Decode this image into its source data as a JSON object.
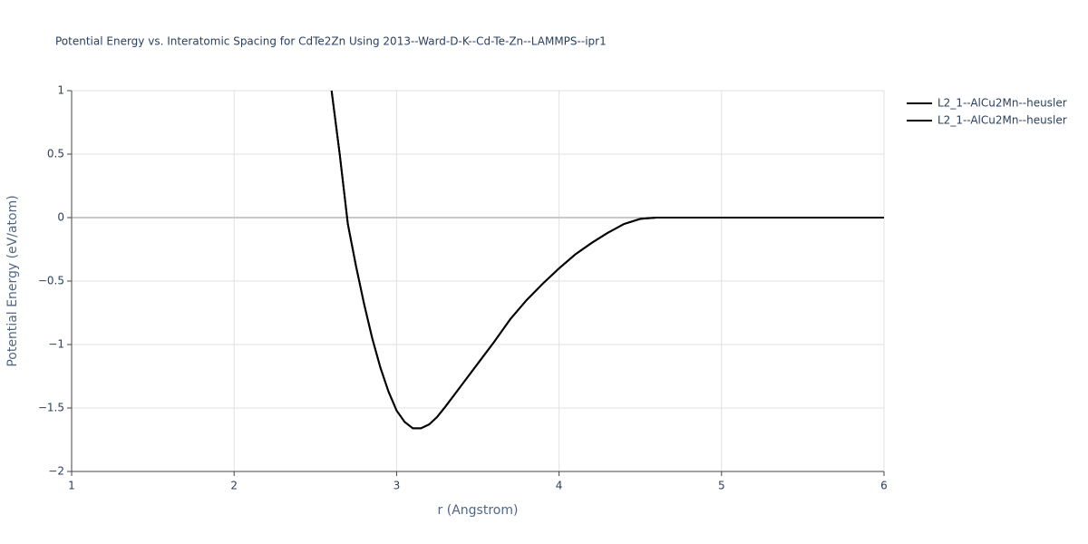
{
  "chart_data": {
    "type": "line",
    "title": "Potential Energy vs. Interatomic Spacing for CdTe2Zn Using 2013--Ward-D-K--Cd-Te-Zn--LAMMPS--ipr1",
    "x_label": "r (Angstrom)",
    "y_label": "Potential Energy (eV/atom)",
    "xlim": [
      1,
      6
    ],
    "xticks": [
      1,
      2,
      3,
      4,
      5,
      6
    ],
    "ylim": [
      -2,
      1
    ],
    "yticks": [
      {
        "value": -2,
        "label": "−2"
      },
      {
        "value": -1.5,
        "label": "−1.5"
      },
      {
        "value": -1,
        "label": "−1"
      },
      {
        "value": -0.5,
        "label": "−0.5"
      },
      0,
      0.5,
      1
    ],
    "grid": true,
    "series": [
      {
        "name": "L2_1--AlCu2Mn--heusler",
        "color": "#000000",
        "x": [
          2.6,
          2.65,
          2.7,
          2.75,
          2.8,
          2.85,
          2.9,
          2.95,
          3.0,
          3.05,
          3.1,
          3.15,
          3.2,
          3.25,
          3.3,
          3.4,
          3.5,
          3.6,
          3.7,
          3.8,
          3.9,
          4.0,
          4.1,
          4.2,
          4.3,
          4.4,
          4.5,
          4.6,
          5.0,
          6.0
        ],
        "values": [
          1.0,
          0.5,
          -0.05,
          -0.38,
          -0.68,
          -0.95,
          -1.18,
          -1.37,
          -1.52,
          -1.61,
          -1.66,
          -1.66,
          -1.63,
          -1.57,
          -1.49,
          -1.32,
          -1.15,
          -0.98,
          -0.8,
          -0.65,
          -0.52,
          -0.4,
          -0.29,
          -0.2,
          -0.12,
          -0.05,
          -0.01,
          0,
          0,
          0
        ]
      },
      {
        "name": "L2_1--AlCu2Mn--heusler",
        "color": "#000000",
        "x": [
          2.6,
          2.65,
          2.7,
          2.75,
          2.8,
          2.85,
          2.9,
          2.95,
          3.0,
          3.05,
          3.1,
          3.15,
          3.2,
          3.25,
          3.3,
          3.4,
          3.5,
          3.6,
          3.7,
          3.8,
          3.9,
          4.0,
          4.1,
          4.2,
          4.3,
          4.4,
          4.5,
          4.6,
          5.0,
          6.0
        ],
        "values": [
          1.0,
          0.5,
          -0.05,
          -0.38,
          -0.68,
          -0.95,
          -1.18,
          -1.37,
          -1.52,
          -1.61,
          -1.66,
          -1.66,
          -1.63,
          -1.57,
          -1.49,
          -1.32,
          -1.15,
          -0.98,
          -0.8,
          -0.65,
          -0.52,
          -0.4,
          -0.29,
          -0.2,
          -0.12,
          -0.05,
          -0.01,
          0,
          0,
          0
        ]
      }
    ]
  }
}
